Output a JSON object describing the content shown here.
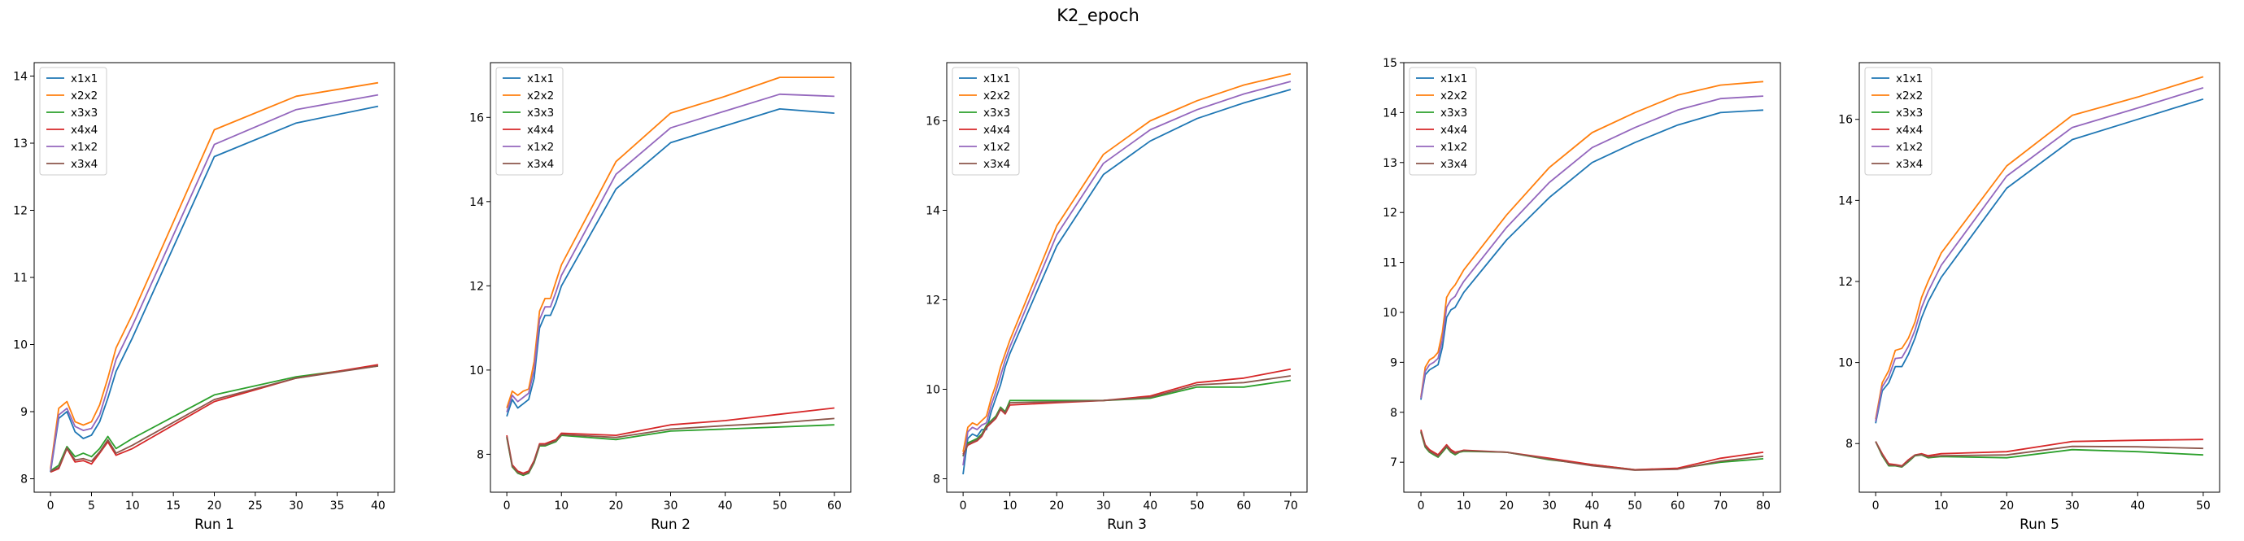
{
  "figure": {
    "title": "K2_epoch"
  },
  "series_style": [
    {
      "name": "x1x1",
      "color": "#1f77b4"
    },
    {
      "name": "x2x2",
      "color": "#ff7f0e"
    },
    {
      "name": "x3x3",
      "color": "#2ca02c"
    },
    {
      "name": "x4x4",
      "color": "#d62728"
    },
    {
      "name": "x1x2",
      "color": "#9467bd"
    },
    {
      "name": "x3x4",
      "color": "#8c564b"
    }
  ],
  "chart_data": [
    {
      "type": "line",
      "title": "",
      "xlabel": "Run 1",
      "ylabel": "",
      "xlim": [
        -2,
        42
      ],
      "ylim": [
        7.8,
        14.2
      ],
      "xticks": [
        0,
        5,
        10,
        15,
        20,
        25,
        30,
        35,
        40
      ],
      "yticks": [
        8,
        9,
        10,
        11,
        12,
        13,
        14
      ],
      "legend": "top-left",
      "grid": false,
      "x": [
        0,
        1,
        2,
        3,
        4,
        5,
        6,
        7,
        8,
        10,
        20,
        30,
        40
      ],
      "series": [
        {
          "name": "x1x1",
          "values": [
            8.1,
            8.9,
            9.0,
            8.7,
            8.6,
            8.65,
            8.85,
            9.2,
            9.6,
            10.1,
            12.8,
            13.3,
            13.55
          ]
        },
        {
          "name": "x2x2",
          "values": [
            8.15,
            9.05,
            9.15,
            8.85,
            8.8,
            8.85,
            9.1,
            9.5,
            9.95,
            10.45,
            13.2,
            13.7,
            13.9
          ]
        },
        {
          "name": "x3x3",
          "values": [
            8.12,
            8.2,
            8.48,
            8.33,
            8.38,
            8.33,
            8.45,
            8.63,
            8.45,
            8.6,
            9.25,
            9.52,
            9.68
          ]
        },
        {
          "name": "x4x4",
          "values": [
            8.1,
            8.15,
            8.45,
            8.25,
            8.27,
            8.22,
            8.38,
            8.55,
            8.35,
            8.45,
            9.15,
            9.5,
            9.7
          ]
        },
        {
          "name": "x1x2",
          "values": [
            8.12,
            8.95,
            9.05,
            8.78,
            8.72,
            8.75,
            8.95,
            9.35,
            9.78,
            10.28,
            12.98,
            13.5,
            13.72
          ]
        },
        {
          "name": "x3x4",
          "values": [
            8.11,
            8.17,
            8.46,
            8.28,
            8.3,
            8.26,
            8.4,
            8.58,
            8.38,
            8.5,
            9.18,
            9.5,
            9.68
          ]
        }
      ]
    },
    {
      "type": "line",
      "title": "",
      "xlabel": "Run 2",
      "ylabel": "",
      "xlim": [
        -3,
        63
      ],
      "ylim": [
        7.1,
        17.3
      ],
      "xticks": [
        0,
        10,
        20,
        30,
        40,
        50,
        60
      ],
      "yticks": [
        8,
        10,
        12,
        14,
        16
      ],
      "legend": "top-left",
      "grid": false,
      "x": [
        0,
        1,
        2,
        3,
        4,
        5,
        6,
        7,
        8,
        9,
        10,
        20,
        30,
        40,
        50,
        60
      ],
      "series": [
        {
          "name": "x1x1",
          "values": [
            8.9,
            9.3,
            9.1,
            9.2,
            9.3,
            9.8,
            11.0,
            11.3,
            11.3,
            11.6,
            12.0,
            14.3,
            15.4,
            15.8,
            16.2,
            16.1
          ]
        },
        {
          "name": "x2x2",
          "values": [
            9.1,
            9.5,
            9.4,
            9.5,
            9.55,
            10.2,
            11.4,
            11.7,
            11.7,
            12.1,
            12.5,
            14.95,
            16.1,
            16.5,
            16.95,
            16.95
          ]
        },
        {
          "name": "x3x3",
          "values": [
            8.4,
            7.7,
            7.55,
            7.5,
            7.55,
            7.8,
            8.2,
            8.2,
            8.25,
            8.3,
            8.45,
            8.35,
            8.55,
            8.6,
            8.65,
            8.7
          ]
        },
        {
          "name": "x4x4",
          "values": [
            8.45,
            7.75,
            7.6,
            7.55,
            7.6,
            7.85,
            8.25,
            8.25,
            8.3,
            8.35,
            8.5,
            8.45,
            8.7,
            8.8,
            8.95,
            9.1
          ]
        },
        {
          "name": "x1x2",
          "values": [
            9.0,
            9.4,
            9.25,
            9.35,
            9.45,
            10.0,
            11.2,
            11.5,
            11.5,
            11.85,
            12.25,
            14.65,
            15.75,
            16.15,
            16.55,
            16.5
          ]
        },
        {
          "name": "x3x4",
          "values": [
            8.42,
            7.72,
            7.57,
            7.52,
            7.57,
            7.82,
            8.22,
            8.22,
            8.27,
            8.32,
            8.47,
            8.4,
            8.6,
            8.68,
            8.75,
            8.85
          ]
        }
      ]
    },
    {
      "type": "line",
      "title": "",
      "xlabel": "Run 3",
      "ylabel": "",
      "xlim": [
        -3.5,
        73.5
      ],
      "ylim": [
        7.7,
        17.3
      ],
      "xticks": [
        0,
        10,
        20,
        30,
        40,
        50,
        60,
        70
      ],
      "yticks": [
        8,
        10,
        12,
        14,
        16
      ],
      "legend": "top-left",
      "grid": false,
      "x": [
        0,
        1,
        2,
        3,
        4,
        5,
        6,
        7,
        8,
        9,
        10,
        20,
        30,
        40,
        50,
        60,
        70
      ],
      "series": [
        {
          "name": "x1x1",
          "values": [
            8.1,
            8.9,
            9.0,
            8.95,
            9.1,
            9.1,
            9.5,
            9.8,
            10.1,
            10.5,
            10.8,
            13.2,
            14.8,
            15.55,
            16.05,
            16.4,
            16.7
          ]
        },
        {
          "name": "x2x2",
          "values": [
            8.6,
            9.15,
            9.25,
            9.2,
            9.3,
            9.4,
            9.8,
            10.1,
            10.5,
            10.8,
            11.1,
            13.65,
            15.25,
            16.0,
            16.45,
            16.8,
            17.05
          ]
        },
        {
          "name": "x3x3",
          "values": [
            8.5,
            8.8,
            8.85,
            8.9,
            9.0,
            9.2,
            9.3,
            9.4,
            9.6,
            9.5,
            9.75,
            9.75,
            9.75,
            9.8,
            10.05,
            10.05,
            10.2
          ]
        },
        {
          "name": "x4x4",
          "values": [
            8.55,
            8.75,
            8.8,
            8.85,
            8.95,
            9.15,
            9.25,
            9.35,
            9.55,
            9.45,
            9.65,
            9.7,
            9.75,
            9.85,
            10.15,
            10.25,
            10.45
          ]
        },
        {
          "name": "x1x2",
          "values": [
            8.3,
            9.05,
            9.15,
            9.1,
            9.2,
            9.25,
            9.65,
            9.95,
            10.3,
            10.65,
            10.95,
            13.45,
            15.05,
            15.8,
            16.25,
            16.6,
            16.88
          ]
        },
        {
          "name": "x3x4",
          "values": [
            8.52,
            8.77,
            8.82,
            8.87,
            8.97,
            9.17,
            9.27,
            9.37,
            9.57,
            9.47,
            9.7,
            9.72,
            9.75,
            9.82,
            10.1,
            10.15,
            10.3
          ]
        }
      ]
    },
    {
      "type": "line",
      "title": "",
      "xlabel": "Run 4",
      "ylabel": "",
      "xlim": [
        -4,
        84
      ],
      "ylim": [
        6.4,
        15.0
      ],
      "xticks": [
        0,
        10,
        20,
        30,
        40,
        50,
        60,
        70,
        80
      ],
      "yticks": [
        7,
        8,
        9,
        10,
        11,
        12,
        13,
        14,
        15
      ],
      "legend": "top-left",
      "grid": false,
      "x": [
        0,
        1,
        2,
        3,
        4,
        5,
        6,
        7,
        8,
        9,
        10,
        20,
        30,
        40,
        50,
        60,
        70,
        80
      ],
      "series": [
        {
          "name": "x1x1",
          "values": [
            8.25,
            8.75,
            8.85,
            8.9,
            8.95,
            9.3,
            9.9,
            10.05,
            10.1,
            10.25,
            10.4,
            11.45,
            12.3,
            13.0,
            13.4,
            13.75,
            14.0,
            14.05
          ]
        },
        {
          "name": "x2x2",
          "values": [
            8.3,
            8.9,
            9.05,
            9.1,
            9.2,
            9.6,
            10.3,
            10.45,
            10.55,
            10.7,
            10.85,
            11.95,
            12.9,
            13.6,
            14.0,
            14.35,
            14.55,
            14.62
          ]
        },
        {
          "name": "x3x3",
          "values": [
            7.6,
            7.3,
            7.2,
            7.15,
            7.1,
            7.2,
            7.3,
            7.2,
            7.15,
            7.2,
            7.22,
            7.2,
            7.05,
            6.95,
            6.85,
            6.87,
            7.0,
            7.07
          ]
        },
        {
          "name": "x4x4",
          "values": [
            7.65,
            7.35,
            7.25,
            7.2,
            7.15,
            7.25,
            7.35,
            7.25,
            7.2,
            7.22,
            7.24,
            7.2,
            7.08,
            6.95,
            6.85,
            6.88,
            7.08,
            7.2
          ]
        },
        {
          "name": "x1x2",
          "values": [
            8.28,
            8.82,
            8.95,
            9.0,
            9.08,
            9.45,
            10.1,
            10.25,
            10.32,
            10.48,
            10.62,
            11.7,
            12.6,
            13.3,
            13.7,
            14.05,
            14.28,
            14.33
          ]
        },
        {
          "name": "x3x4",
          "values": [
            7.62,
            7.32,
            7.22,
            7.17,
            7.12,
            7.22,
            7.32,
            7.22,
            7.17,
            7.21,
            7.23,
            7.2,
            7.06,
            6.93,
            6.84,
            6.86,
            7.02,
            7.12
          ]
        }
      ]
    },
    {
      "type": "line",
      "title": "",
      "xlabel": "Run 5",
      "ylabel": "",
      "xlim": [
        -2.5,
        52.5
      ],
      "ylim": [
        6.8,
        17.4
      ],
      "xticks": [
        0,
        10,
        20,
        30,
        40,
        50
      ],
      "yticks": [
        8,
        10,
        12,
        14,
        16
      ],
      "legend": "top-left",
      "grid": false,
      "x": [
        0,
        1,
        2,
        3,
        4,
        5,
        6,
        7,
        8,
        10,
        20,
        30,
        40,
        50
      ],
      "series": [
        {
          "name": "x1x1",
          "values": [
            8.5,
            9.3,
            9.5,
            9.9,
            9.9,
            10.2,
            10.6,
            11.1,
            11.5,
            12.1,
            14.3,
            15.5,
            16.0,
            16.5
          ]
        },
        {
          "name": "x2x2",
          "values": [
            8.6,
            9.5,
            9.8,
            10.3,
            10.35,
            10.6,
            11.0,
            11.6,
            12.0,
            12.7,
            14.85,
            16.1,
            16.55,
            17.05
          ]
        },
        {
          "name": "x3x3",
          "values": [
            8.05,
            7.7,
            7.45,
            7.45,
            7.42,
            7.55,
            7.7,
            7.72,
            7.65,
            7.68,
            7.65,
            7.85,
            7.8,
            7.72
          ]
        },
        {
          "name": "x4x4",
          "values": [
            8.05,
            7.75,
            7.5,
            7.48,
            7.45,
            7.6,
            7.72,
            7.75,
            7.7,
            7.75,
            7.8,
            8.05,
            8.08,
            8.1
          ]
        },
        {
          "name": "x1x2",
          "values": [
            8.55,
            9.4,
            9.65,
            10.1,
            10.12,
            10.4,
            10.8,
            11.35,
            11.75,
            12.4,
            14.6,
            15.8,
            16.28,
            16.78
          ]
        },
        {
          "name": "x3x4",
          "values": [
            8.05,
            7.72,
            7.47,
            7.46,
            7.43,
            7.57,
            7.71,
            7.73,
            7.67,
            7.7,
            7.72,
            7.93,
            7.92,
            7.88
          ]
        }
      ]
    }
  ]
}
